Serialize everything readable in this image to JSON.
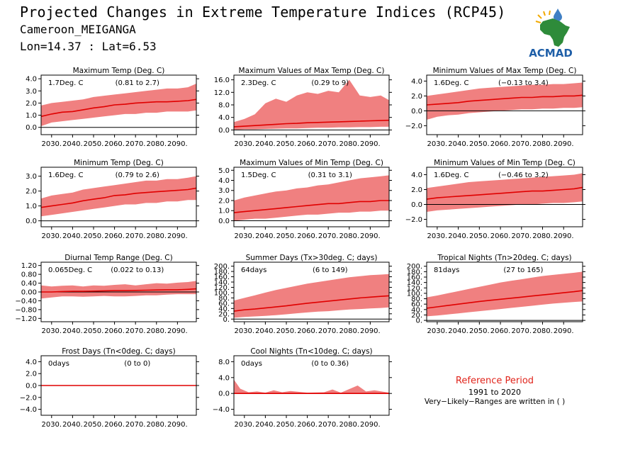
{
  "header": {
    "title": "Projected Changes in Extreme Temperature Indices (RCP45)",
    "station": "Cameroon_MEIGANGA",
    "coords": "Lon=14.37 : Lat=6.53"
  },
  "logo": {
    "text": "ACMAD",
    "icon": "africa-map-drop-logo",
    "colors": {
      "africa": "#2e8b3a",
      "text": "#1f5fa8",
      "rays": "#f2a900"
    }
  },
  "reference": {
    "title": "Reference Period",
    "years": "1991 to 2020",
    "note": "Very−Likely−Ranges are written in ( )"
  },
  "colors": {
    "band": "#f08080",
    "line": "#e00000",
    "zero": "#000000",
    "ref_title": "#e0241b"
  },
  "chart_data": [
    {
      "type": "area",
      "title": "Maximum Temp (Deg. C)",
      "xlabel": "",
      "ylabel": "",
      "mean_label": "1.7Deg. C",
      "range_label": "(0.81 to 2.7)",
      "x_ticks": [
        "2030.",
        "2040.",
        "2050.",
        "2060.",
        "2070.",
        "2080.",
        "2090."
      ],
      "y_ticks": [
        "0.0",
        "1.0",
        "2.0",
        "3.0",
        "4.0"
      ],
      "ylim": [
        -0.6,
        4.3
      ],
      "years": [
        2025,
        2030,
        2035,
        2040,
        2045,
        2050,
        2055,
        2060,
        2065,
        2070,
        2075,
        2080,
        2085,
        2090,
        2095,
        2099
      ],
      "median": [
        0.9,
        1.1,
        1.25,
        1.3,
        1.45,
        1.6,
        1.7,
        1.85,
        1.9,
        2.0,
        2.05,
        2.1,
        2.1,
        2.15,
        2.2,
        2.3
      ],
      "lower": [
        0.1,
        0.4,
        0.5,
        0.6,
        0.7,
        0.8,
        0.9,
        1.0,
        1.1,
        1.1,
        1.2,
        1.2,
        1.3,
        1.3,
        1.3,
        1.4
      ],
      "upper": [
        1.8,
        2.0,
        2.1,
        2.2,
        2.3,
        2.5,
        2.6,
        2.7,
        2.8,
        2.9,
        3.0,
        3.1,
        3.2,
        3.2,
        3.3,
        3.6
      ]
    },
    {
      "type": "area",
      "title": "Maximum Values of Max Temp (Deg. C)",
      "xlabel": "",
      "ylabel": "",
      "mean_label": "2.3Deg. C",
      "range_label": "(0.29 to 9)",
      "x_ticks": [
        "2030.",
        "2040.",
        "2050.",
        "2060.",
        "2070.",
        "2080.",
        "2090."
      ],
      "y_ticks": [
        "0.0",
        "4.0",
        "8.0",
        "12.0",
        "16.0"
      ],
      "ylim": [
        -1.5,
        17.5
      ],
      "years": [
        2025,
        2030,
        2035,
        2040,
        2045,
        2050,
        2055,
        2060,
        2065,
        2070,
        2075,
        2080,
        2085,
        2090,
        2095,
        2099
      ],
      "median": [
        1.0,
        1.2,
        1.4,
        1.6,
        1.8,
        2.0,
        2.1,
        2.3,
        2.4,
        2.5,
        2.6,
        2.7,
        2.8,
        2.9,
        3.0,
        3.1
      ],
      "lower": [
        0.0,
        0.2,
        0.2,
        0.3,
        0.4,
        0.5,
        0.5,
        0.6,
        0.7,
        0.7,
        0.8,
        0.8,
        0.9,
        0.9,
        1.0,
        1.0
      ],
      "upper": [
        2.5,
        3.5,
        5.0,
        8.5,
        10.0,
        9.0,
        11.0,
        12.0,
        11.5,
        12.5,
        12.0,
        16.0,
        11.0,
        10.5,
        11.0,
        9.5
      ]
    },
    {
      "type": "area",
      "title": "Minimum Values of Max Temp (Deg. C)",
      "xlabel": "",
      "ylabel": "",
      "mean_label": "1.6Deg. C",
      "range_label": "(−0.13 to 3.4)",
      "x_ticks": [
        "2030.",
        "2040.",
        "2050.",
        "2060.",
        "2070.",
        "2080.",
        "2090."
      ],
      "y_ticks": [
        "−2.0",
        "0.0",
        "2.0",
        "4.0"
      ],
      "ylim": [
        -3.2,
        4.8
      ],
      "years": [
        2025,
        2030,
        2035,
        2040,
        2045,
        2050,
        2055,
        2060,
        2065,
        2070,
        2075,
        2080,
        2085,
        2090,
        2095,
        2099
      ],
      "median": [
        0.8,
        0.9,
        1.0,
        1.1,
        1.3,
        1.4,
        1.5,
        1.6,
        1.7,
        1.8,
        1.8,
        1.9,
        1.9,
        2.0,
        2.0,
        2.1
      ],
      "lower": [
        -1.2,
        -0.8,
        -0.6,
        -0.5,
        -0.3,
        -0.2,
        -0.1,
        0.0,
        0.1,
        0.2,
        0.2,
        0.3,
        0.3,
        0.4,
        0.4,
        0.5
      ],
      "upper": [
        2.0,
        2.2,
        2.4,
        2.6,
        2.8,
        3.0,
        3.1,
        3.2,
        3.3,
        3.4,
        3.5,
        3.5,
        3.6,
        3.6,
        3.7,
        3.8
      ]
    },
    {
      "type": "area",
      "title": "Minimum Temp (Deg. C)",
      "xlabel": "",
      "ylabel": "",
      "mean_label": "1.6Deg. C",
      "range_label": "(0.79 to 2.6)",
      "x_ticks": [
        "2030.",
        "2040.",
        "2050.",
        "2060.",
        "2070.",
        "2080.",
        "2090."
      ],
      "y_ticks": [
        "0.0",
        "1.0",
        "2.0",
        "3.0"
      ],
      "ylim": [
        -0.4,
        3.6
      ],
      "years": [
        2025,
        2030,
        2035,
        2040,
        2045,
        2050,
        2055,
        2060,
        2065,
        2070,
        2075,
        2080,
        2085,
        2090,
        2095,
        2099
      ],
      "median": [
        0.9,
        1.0,
        1.1,
        1.2,
        1.35,
        1.45,
        1.55,
        1.7,
        1.75,
        1.85,
        1.9,
        1.95,
        2.0,
        2.05,
        2.1,
        2.2
      ],
      "lower": [
        0.3,
        0.4,
        0.5,
        0.6,
        0.7,
        0.8,
        0.9,
        1.0,
        1.1,
        1.1,
        1.2,
        1.2,
        1.3,
        1.3,
        1.4,
        1.4
      ],
      "upper": [
        1.5,
        1.7,
        1.8,
        1.9,
        2.1,
        2.2,
        2.3,
        2.4,
        2.5,
        2.6,
        2.7,
        2.7,
        2.8,
        2.8,
        2.9,
        3.0
      ]
    },
    {
      "type": "area",
      "title": "Maximum Values of Min Temp (Deg. C)",
      "xlabel": "",
      "ylabel": "",
      "mean_label": "1.5Deg. C",
      "range_label": "(0.31 to 3.1)",
      "x_ticks": [
        "2030.",
        "2040.",
        "2050.",
        "2060.",
        "2070.",
        "2080.",
        "2090."
      ],
      "y_ticks": [
        "0.0",
        "1.0",
        "2.0",
        "3.0",
        "4.0",
        "5.0"
      ],
      "ylim": [
        -0.6,
        5.3
      ],
      "years": [
        2025,
        2030,
        2035,
        2040,
        2045,
        2050,
        2055,
        2060,
        2065,
        2070,
        2075,
        2080,
        2085,
        2090,
        2095,
        2099
      ],
      "median": [
        0.8,
        0.9,
        1.0,
        1.1,
        1.2,
        1.3,
        1.4,
        1.5,
        1.6,
        1.7,
        1.7,
        1.8,
        1.9,
        1.9,
        2.0,
        2.0
      ],
      "lower": [
        0.0,
        0.1,
        0.2,
        0.2,
        0.3,
        0.4,
        0.5,
        0.6,
        0.6,
        0.7,
        0.8,
        0.8,
        0.9,
        0.9,
        1.0,
        1.0
      ],
      "upper": [
        2.0,
        2.3,
        2.5,
        2.7,
        2.9,
        3.0,
        3.2,
        3.3,
        3.5,
        3.6,
        3.8,
        4.0,
        4.2,
        4.3,
        4.4,
        4.5
      ]
    },
    {
      "type": "area",
      "title": "Minimum Values of Min Temp (Deg. C)",
      "xlabel": "",
      "ylabel": "",
      "mean_label": "1.6Deg. C",
      "range_label": "(−0.46 to 3.2)",
      "x_ticks": [
        "2030.",
        "2040.",
        "2050.",
        "2060.",
        "2070.",
        "2080.",
        "2090."
      ],
      "y_ticks": [
        "−2.0",
        "0.0",
        "2.0",
        "4.0"
      ],
      "ylim": [
        -3.0,
        5.0
      ],
      "years": [
        2025,
        2030,
        2035,
        2040,
        2045,
        2050,
        2055,
        2060,
        2065,
        2070,
        2075,
        2080,
        2085,
        2090,
        2095,
        2099
      ],
      "median": [
        0.7,
        0.9,
        1.0,
        1.1,
        1.2,
        1.3,
        1.4,
        1.5,
        1.6,
        1.7,
        1.8,
        1.8,
        1.9,
        2.0,
        2.1,
        2.3
      ],
      "lower": [
        -1.0,
        -0.8,
        -0.7,
        -0.6,
        -0.5,
        -0.4,
        -0.3,
        -0.2,
        -0.1,
        0.0,
        0.0,
        0.1,
        0.2,
        0.2,
        0.3,
        0.4
      ],
      "upper": [
        2.2,
        2.4,
        2.6,
        2.8,
        3.0,
        3.1,
        3.2,
        3.3,
        3.4,
        3.5,
        3.6,
        3.7,
        3.8,
        3.9,
        4.0,
        4.2
      ]
    },
    {
      "type": "area",
      "title": "Diurnal Temp Range (Deg. C)",
      "xlabel": "",
      "ylabel": "",
      "mean_label": "0.065Deg. C",
      "range_label": "(0.022 to 0.13)",
      "x_ticks": [
        "2030.",
        "2040.",
        "2050.",
        "2060.",
        "2070.",
        "2080.",
        "2090."
      ],
      "y_ticks": [
        "−1.20",
        "−0.80",
        "−0.40",
        "0.00",
        "0.40",
        "0.80",
        "1.20"
      ],
      "ylim": [
        -1.35,
        1.35
      ],
      "years": [
        2025,
        2030,
        2035,
        2040,
        2045,
        2050,
        2055,
        2060,
        2065,
        2070,
        2075,
        2080,
        2085,
        2090,
        2095,
        2099
      ],
      "median": [
        0.0,
        0.0,
        0.02,
        0.03,
        0.03,
        0.04,
        0.05,
        0.06,
        0.06,
        0.07,
        0.08,
        0.09,
        0.1,
        0.1,
        0.12,
        0.14
      ],
      "lower": [
        -0.3,
        -0.25,
        -0.2,
        -0.2,
        -0.22,
        -0.2,
        -0.18,
        -0.2,
        -0.2,
        -0.18,
        -0.15,
        -0.15,
        -0.12,
        -0.1,
        -0.1,
        -0.1
      ],
      "upper": [
        0.3,
        0.25,
        0.28,
        0.3,
        0.25,
        0.3,
        0.28,
        0.32,
        0.35,
        0.3,
        0.35,
        0.4,
        0.38,
        0.42,
        0.45,
        0.5
      ]
    },
    {
      "type": "area",
      "title": "Summer Days (Tx>30deg. C; days)",
      "xlabel": "",
      "ylabel": "",
      "mean_label": "64days",
      "range_label": "(6 to 149)",
      "x_ticks": [
        "2030.",
        "2040.",
        "2050.",
        "2060.",
        "2070.",
        "2080.",
        "2090."
      ],
      "y_ticks": [
        "0.",
        "20.",
        "40.",
        "60.",
        "80.",
        "100.",
        "120.",
        "140.",
        "160.",
        "180.",
        "200."
      ],
      "ylim": [
        -10,
        215
      ],
      "years": [
        2025,
        2030,
        2035,
        2040,
        2045,
        2050,
        2055,
        2060,
        2065,
        2070,
        2075,
        2080,
        2085,
        2090,
        2095,
        2099
      ],
      "median": [
        30,
        35,
        38,
        42,
        46,
        50,
        55,
        60,
        64,
        68,
        72,
        76,
        80,
        83,
        86,
        88
      ],
      "lower": [
        5,
        8,
        10,
        12,
        15,
        18,
        22,
        25,
        28,
        30,
        33,
        36,
        38,
        40,
        42,
        44
      ],
      "upper": [
        70,
        80,
        90,
        100,
        110,
        118,
        126,
        134,
        140,
        146,
        152,
        158,
        162,
        166,
        168,
        170
      ]
    },
    {
      "type": "area",
      "title": "Tropical Nights (Tn>20deg. C; days)",
      "xlabel": "",
      "ylabel": "",
      "mean_label": "81days",
      "range_label": "(27 to 165)",
      "x_ticks": [
        "2030.",
        "2040.",
        "2050.",
        "2060.",
        "2070.",
        "2080.",
        "2090."
      ],
      "y_ticks": [
        "0.",
        "20.",
        "40.",
        "60.",
        "80.",
        "100.",
        "120.",
        "140.",
        "160.",
        "180.",
        "200."
      ],
      "ylim": [
        -5,
        215
      ],
      "years": [
        2025,
        2030,
        2035,
        2040,
        2045,
        2050,
        2055,
        2060,
        2065,
        2070,
        2075,
        2080,
        2085,
        2090,
        2095,
        2099
      ],
      "median": [
        45,
        50,
        55,
        60,
        65,
        70,
        74,
        78,
        82,
        86,
        90,
        94,
        98,
        102,
        106,
        110
      ],
      "lower": [
        15,
        18,
        22,
        26,
        30,
        34,
        38,
        42,
        46,
        50,
        54,
        58,
        62,
        65,
        68,
        70
      ],
      "upper": [
        85,
        92,
        100,
        108,
        116,
        124,
        132,
        140,
        146,
        152,
        158,
        164,
        168,
        172,
        176,
        180
      ]
    },
    {
      "type": "area",
      "title": "Frost Days (Tn<0deg. C; days)",
      "xlabel": "",
      "ylabel": "",
      "mean_label": "0days",
      "range_label": "(0 to 0)",
      "x_ticks": [
        "2030.",
        "2040.",
        "2050.",
        "2060.",
        "2070.",
        "2080.",
        "2090."
      ],
      "y_ticks": [
        "−4.0",
        "−2.0",
        "0.0",
        "2.0",
        "4.0"
      ],
      "ylim": [
        -5.0,
        5.0
      ],
      "years": [
        2025,
        2099
      ],
      "median": [
        0,
        0
      ],
      "lower": [
        0,
        0
      ],
      "upper": [
        0,
        0
      ]
    },
    {
      "type": "area",
      "title": "Cool Nights (Tn<10deg. C; days)",
      "xlabel": "",
      "ylabel": "",
      "mean_label": "0days",
      "range_label": "(0 to 0.36)",
      "x_ticks": [
        "2030.",
        "2040.",
        "2050.",
        "2060.",
        "2070.",
        "2080.",
        "2090."
      ],
      "y_ticks": [
        "−4.0",
        "0.0",
        "4.0",
        "8.0"
      ],
      "ylim": [
        -5.5,
        9.5
      ],
      "years": [
        2025,
        2028,
        2032,
        2036,
        2040,
        2044,
        2048,
        2052,
        2060,
        2068,
        2072,
        2076,
        2084,
        2088,
        2092,
        2099
      ],
      "median": [
        0,
        0,
        0,
        0,
        0,
        0,
        0,
        0,
        0,
        0,
        0,
        0,
        0,
        0,
        0,
        0
      ],
      "lower": [
        0,
        0,
        0,
        0,
        0,
        0,
        0,
        0,
        0,
        0,
        0,
        0,
        0,
        0,
        0,
        0
      ],
      "upper": [
        3.5,
        1.2,
        0.3,
        0.5,
        0.2,
        0.8,
        0.3,
        0.6,
        0.2,
        0.3,
        1.0,
        0.2,
        2.0,
        0.5,
        0.8,
        0.2
      ]
    }
  ]
}
